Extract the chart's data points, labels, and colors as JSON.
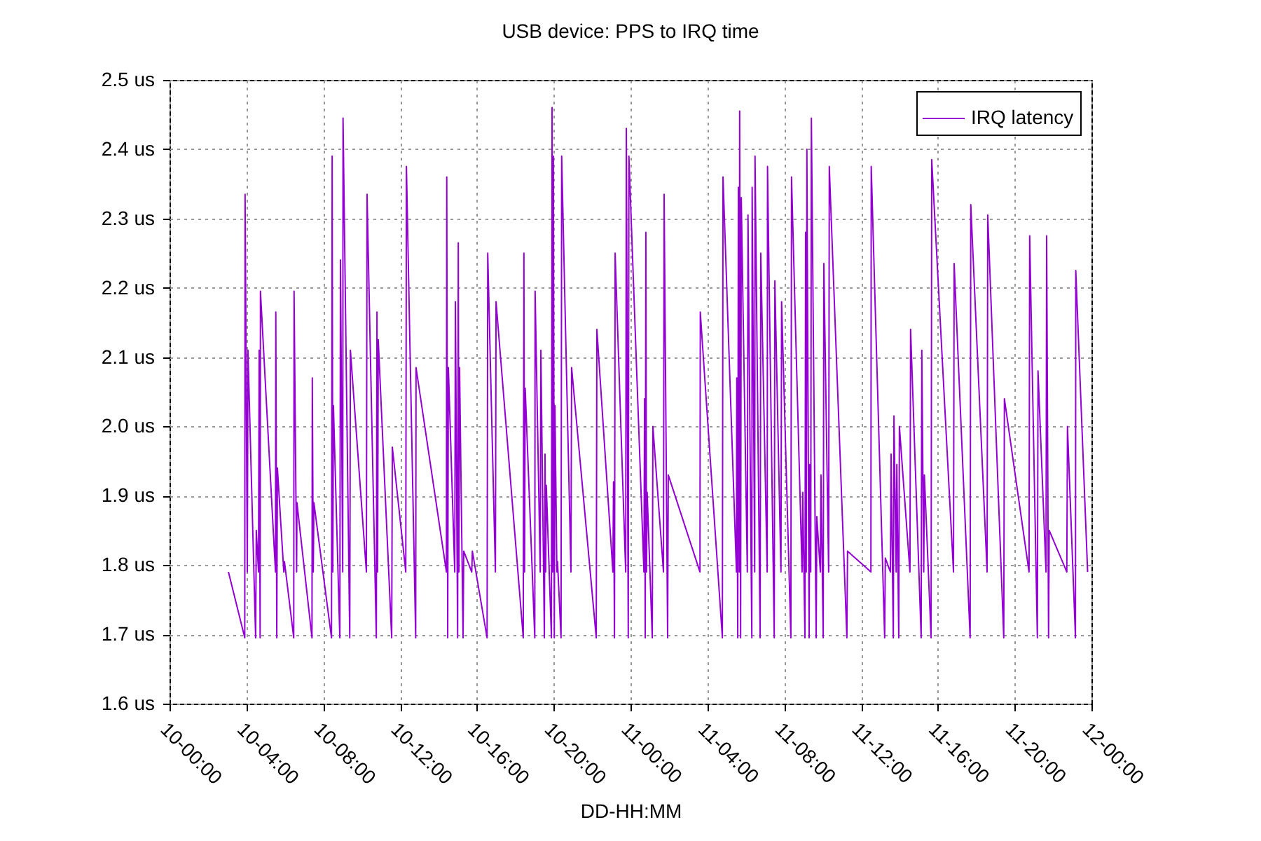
{
  "chart_data": {
    "type": "line",
    "title": "USB device: PPS to IRQ time",
    "xlabel": "DD-HH:MM",
    "xlim": [
      "2000-01-10T00:00",
      "2000-01-12T00:00"
    ],
    "ylim": [
      1.6,
      2.5
    ],
    "xticks": [
      {
        "value": "2000-01-10T00:00",
        "label": "10-00:00"
      },
      {
        "value": "2000-01-10T04:00",
        "label": "10-04:00"
      },
      {
        "value": "2000-01-10T08:00",
        "label": "10-08:00"
      },
      {
        "value": "2000-01-10T12:00",
        "label": "10-12:00"
      },
      {
        "value": "2000-01-10T16:00",
        "label": "10-16:00"
      },
      {
        "value": "2000-01-10T20:00",
        "label": "10-20:00"
      },
      {
        "value": "2000-01-11T00:00",
        "label": "11-00:00"
      },
      {
        "value": "2000-01-11T04:00",
        "label": "11-04:00"
      },
      {
        "value": "2000-01-11T08:00",
        "label": "11-08:00"
      },
      {
        "value": "2000-01-11T12:00",
        "label": "11-12:00"
      },
      {
        "value": "2000-01-11T16:00",
        "label": "11-16:00"
      },
      {
        "value": "2000-01-11T20:00",
        "label": "11-20:00"
      },
      {
        "value": "2000-01-12T00:00",
        "label": "12-00:00"
      }
    ],
    "yticks": [
      {
        "value": 1.6,
        "label": "1.6 us"
      },
      {
        "value": 1.7,
        "label": "1.7 us"
      },
      {
        "value": 1.8,
        "label": "1.8 us"
      },
      {
        "value": 1.9,
        "label": "1.9 us"
      },
      {
        "value": 2.0,
        "label": "2.0 us"
      },
      {
        "value": 2.1,
        "label": "2.1 us"
      },
      {
        "value": 2.2,
        "label": "2.2 us"
      },
      {
        "value": 2.3,
        "label": "2.3 us"
      },
      {
        "value": 2.4,
        "label": "2.4 us"
      },
      {
        "value": 2.5,
        "label": "2.5 us"
      }
    ],
    "grid": true,
    "legend": "top right",
    "line_style": "solid",
    "series": [
      {
        "name": "IRQ latency",
        "color": "#9400d3",
        "x": [
          "2000-01-10T03:04",
          "2000-01-10T03:55",
          "2000-01-10T03:56",
          "2000-01-10T04:03",
          "2000-01-10T04:05",
          "2000-01-10T04:29",
          "2000-01-10T04:31",
          "2000-01-10T04:38",
          "2000-01-10T04:40",
          "2000-01-10T04:43",
          "2000-01-10T04:44",
          "2000-01-10T05:31",
          "2000-01-10T05:32",
          "2000-01-10T05:35",
          "2000-01-10T05:37",
          "2000-01-10T05:57",
          "2000-01-10T05:59",
          "2000-01-10T06:28",
          "2000-01-10T06:29",
          "2000-01-10T06:37",
          "2000-01-10T06:38",
          "2000-01-10T07:25",
          "2000-01-10T07:26",
          "2000-01-10T07:29",
          "2000-01-10T07:31",
          "2000-01-10T08:26",
          "2000-01-10T08:28",
          "2000-01-10T08:30",
          "2000-01-10T08:32",
          "2000-01-10T08:52",
          "2000-01-10T08:54",
          "2000-01-10T09:01",
          "2000-01-10T09:02",
          "2000-01-10T09:23",
          "2000-01-10T09:25",
          "2000-01-10T10:15",
          "2000-01-10T10:17",
          "2000-01-10T10:46",
          "2000-01-10T10:48",
          "2000-01-10T10:50",
          "2000-01-10T10:52",
          "2000-01-10T11:34",
          "2000-01-10T11:36",
          "2000-01-10T12:18",
          "2000-01-10T12:20",
          "2000-01-10T12:49",
          "2000-01-10T12:50",
          "2000-01-10T14:25",
          "2000-01-10T14:26",
          "2000-01-10T14:29",
          "2000-01-10T14:31",
          "2000-01-10T14:51",
          "2000-01-10T14:53",
          "2000-01-10T15:00",
          "2000-01-10T15:02",
          "2000-01-10T15:04",
          "2000-01-10T15:06",
          "2000-01-10T15:17",
          "2000-01-10T15:19",
          "2000-01-10T15:44",
          "2000-01-10T15:46",
          "2000-01-10T16:32",
          "2000-01-10T16:34",
          "2000-01-10T16:58",
          "2000-01-10T17:00",
          "2000-01-10T18:25",
          "2000-01-10T18:27",
          "2000-01-10T18:29",
          "2000-01-10T18:31",
          "2000-01-10T19:01",
          "2000-01-10T19:02",
          "2000-01-10T19:18",
          "2000-01-10T19:20",
          "2000-01-10T19:31",
          "2000-01-10T19:33",
          "2000-01-10T19:35",
          "2000-01-10T19:37",
          "2000-01-10T19:53",
          "2000-01-10T19:55",
          "2000-01-10T19:57",
          "2000-01-10T19:59",
          "2000-01-10T20:02",
          "2000-01-10T20:04",
          "2000-01-10T20:10",
          "2000-01-10T20:12",
          "2000-01-10T20:23",
          "2000-01-10T20:25",
          "2000-01-10T20:54",
          "2000-01-10T20:56",
          "2000-01-10T22:13",
          "2000-01-10T22:15",
          "2000-01-10T23:05",
          "2000-01-10T23:07",
          "2000-01-10T23:10",
          "2000-01-10T23:12",
          "2000-01-10T23:45",
          "2000-01-10T23:47",
          "2000-01-10T23:53",
          "2000-01-10T23:55",
          "2000-01-11T00:42",
          "2000-01-11T00:44",
          "2000-01-11T00:46",
          "2000-01-11T00:48",
          "2000-01-11T00:50",
          "2000-01-11T00:52",
          "2000-01-11T01:08",
          "2000-01-11T01:10",
          "2000-01-11T01:43",
          "2000-01-11T01:45",
          "2000-01-11T01:56",
          "2000-01-11T01:58",
          "2000-01-11T03:37",
          "2000-01-11T03:38",
          "2000-01-11T04:47",
          "2000-01-11T04:49",
          "2000-01-11T05:31",
          "2000-01-11T05:32",
          "2000-01-11T05:35",
          "2000-01-11T05:37",
          "2000-01-11T05:40",
          "2000-01-11T05:41",
          "2000-01-11T05:44",
          "2000-01-11T05:46",
          "2000-01-11T06:05",
          "2000-01-11T06:07",
          "2000-01-11T06:19",
          "2000-01-11T06:20",
          "2000-01-11T06:28",
          "2000-01-11T06:29",
          "2000-01-11T06:45",
          "2000-01-11T06:47",
          "2000-01-11T07:07",
          "2000-01-11T07:08",
          "2000-01-11T07:29",
          "2000-01-11T07:31",
          "2000-01-11T07:50",
          "2000-01-11T07:52",
          "2000-01-11T08:21",
          "2000-01-11T08:23",
          "2000-01-11T08:56",
          "2000-01-11T08:58",
          "2000-01-11T09:05",
          "2000-01-11T09:07",
          "2000-01-11T09:09",
          "2000-01-11T09:11",
          "2000-01-11T09:18",
          "2000-01-11T09:20",
          "2000-01-11T09:23",
          "2000-01-11T09:25",
          "2000-01-11T09:40",
          "2000-01-11T09:42",
          "2000-01-11T09:53",
          "2000-01-11T09:55",
          "2000-01-11T10:02",
          "2000-01-11T10:04",
          "2000-01-11T10:19",
          "2000-01-11T10:21",
          "2000-01-11T11:16",
          "2000-01-11T11:18",
          "2000-01-11T12:31",
          "2000-01-11T12:32",
          "2000-01-11T13:14",
          "2000-01-11T13:16",
          "2000-01-11T13:32",
          "2000-01-11T13:34",
          "2000-01-11T13:41",
          "2000-01-11T13:43",
          "2000-01-11T13:50",
          "2000-01-11T13:52",
          "2000-01-11T13:58",
          "2000-01-11T14:00",
          "2000-01-11T14:33",
          "2000-01-11T14:35",
          "2000-01-11T15:08",
          "2000-01-11T15:10",
          "2000-01-11T15:16",
          "2000-01-11T15:18",
          "2000-01-11T15:39",
          "2000-01-11T15:41",
          "2000-01-11T16:49",
          "2000-01-11T16:51",
          "2000-01-11T17:41",
          "2000-01-11T17:43",
          "2000-01-11T18:34",
          "2000-01-11T18:36",
          "2000-01-11T19:26",
          "2000-01-11T19:28",
          "2000-01-11T20:45",
          "2000-01-11T20:47",
          "2000-01-11T21:11",
          "2000-01-11T21:13",
          "2000-01-11T21:38",
          "2000-01-11T21:40",
          "2000-01-11T21:46",
          "2000-01-11T21:48",
          "2000-01-11T22:43",
          "2000-01-11T22:45",
          "2000-01-11T23:10",
          "2000-01-11T23:11",
          "2000-01-11T23:48"
        ],
        "values": [
          1.79,
          1.695,
          2.335,
          1.79,
          2.11,
          1.695,
          1.85,
          1.79,
          2.11,
          1.695,
          2.195,
          1.79,
          2.165,
          1.695,
          1.94,
          1.79,
          1.805,
          1.695,
          2.195,
          1.79,
          1.89,
          1.695,
          2.07,
          1.79,
          1.89,
          1.695,
          2.39,
          1.79,
          2.03,
          1.695,
          2.24,
          1.79,
          2.445,
          1.695,
          2.11,
          1.79,
          2.335,
          1.695,
          2.165,
          1.79,
          2.125,
          1.695,
          1.97,
          1.79,
          2.375,
          1.695,
          2.085,
          1.79,
          2.36,
          1.695,
          2.085,
          1.79,
          2.18,
          1.695,
          2.265,
          1.79,
          2.085,
          1.695,
          1.82,
          1.79,
          1.82,
          1.695,
          2.25,
          1.79,
          2.18,
          1.695,
          2.25,
          1.79,
          2.055,
          1.695,
          2.195,
          1.79,
          2.11,
          1.695,
          1.96,
          1.79,
          1.915,
          1.695,
          2.46,
          1.79,
          2.39,
          1.695,
          2.03,
          1.79,
          1.805,
          1.695,
          2.39,
          1.79,
          2.085,
          1.695,
          2.14,
          1.79,
          1.92,
          1.695,
          2.25,
          1.79,
          2.43,
          1.695,
          2.39,
          1.79,
          2.04,
          1.695,
          2.28,
          1.79,
          1.905,
          1.695,
          2.0,
          1.79,
          2.335,
          1.695,
          1.93,
          1.79,
          2.165,
          1.695,
          2.36,
          1.79,
          2.07,
          1.695,
          2.345,
          1.79,
          2.455,
          1.695,
          2.33,
          1.79,
          2.305,
          1.695,
          2.345,
          1.79,
          2.39,
          1.695,
          2.25,
          1.79,
          2.375,
          1.695,
          2.21,
          1.79,
          2.18,
          1.695,
          2.36,
          1.79,
          1.905,
          1.695,
          2.28,
          1.79,
          2.4,
          1.695,
          1.945,
          1.79,
          2.445,
          1.695,
          1.87,
          1.79,
          1.93,
          1.695,
          2.235,
          1.79,
          2.375,
          1.695,
          1.82,
          1.79,
          2.375,
          1.695,
          1.81,
          1.79,
          1.96,
          1.695,
          2.015,
          1.79,
          1.945,
          1.695,
          2.0,
          1.79,
          2.14,
          1.695,
          2.11,
          1.79,
          1.93,
          1.695,
          2.385,
          1.79,
          2.235,
          1.695,
          2.32,
          1.79,
          2.305,
          1.695,
          2.04,
          1.79,
          2.275,
          1.695,
          2.08,
          1.79,
          2.275,
          1.695,
          1.85,
          1.79,
          2.0,
          1.695,
          2.225,
          1.79
        ]
      }
    ]
  }
}
